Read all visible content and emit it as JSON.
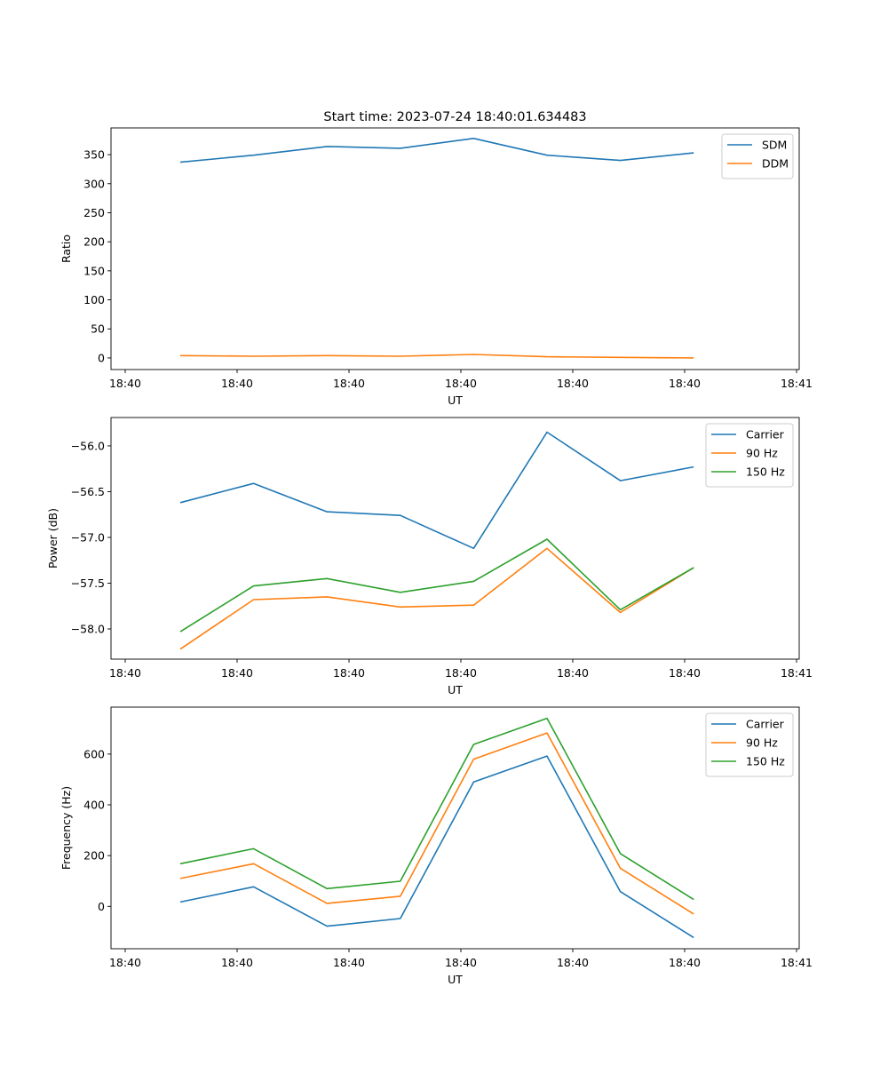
{
  "figure": {
    "title": "Start time: 2023-07-24 18:40:01.634483"
  },
  "chart_data": [
    {
      "type": "line",
      "title": "Start time: 2023-07-24 18:40:01.634483",
      "xlabel": "UT",
      "ylabel": "Ratio",
      "x_ticks": [
        "18:40",
        "18:40",
        "18:40",
        "18:40",
        "18:40",
        "18:40",
        "18:41"
      ],
      "y_ticks": [
        0,
        50,
        100,
        150,
        200,
        250,
        300,
        350
      ],
      "ylim": [
        -20,
        396
      ],
      "x_points": 8,
      "legend_position": "top-right",
      "series": [
        {
          "name": "SDM",
          "color": "#1f77b4",
          "values": [
            337,
            349,
            364,
            361,
            378,
            349,
            340,
            353
          ]
        },
        {
          "name": "DDM",
          "color": "#ff7f0e",
          "values": [
            4,
            3,
            4,
            3,
            6,
            2,
            1,
            0
          ]
        }
      ]
    },
    {
      "type": "line",
      "title": "",
      "xlabel": "UT",
      "ylabel": "Power (dB)",
      "x_ticks": [
        "18:40",
        "18:40",
        "18:40",
        "18:40",
        "18:40",
        "18:40",
        "18:41"
      ],
      "y_ticks": [
        -58.0,
        -57.5,
        -57.0,
        -56.5,
        -56.0
      ],
      "y_tick_labels": [
        "−58.0",
        "−57.5",
        "−57.0",
        "−56.5",
        "−56.0"
      ],
      "ylim": [
        -58.33,
        -55.69
      ],
      "x_points": 8,
      "legend_position": "top-right",
      "series": [
        {
          "name": "Carrier",
          "color": "#1f77b4",
          "values": [
            -56.62,
            -56.41,
            -56.72,
            -56.76,
            -57.12,
            -55.85,
            -56.38,
            -56.23
          ]
        },
        {
          "name": "90 Hz",
          "color": "#ff7f0e",
          "values": [
            -58.22,
            -57.68,
            -57.65,
            -57.76,
            -57.74,
            -57.12,
            -57.82,
            -57.33
          ]
        },
        {
          "name": "150 Hz",
          "color": "#2ca02c",
          "values": [
            -58.03,
            -57.53,
            -57.45,
            -57.6,
            -57.48,
            -57.02,
            -57.79,
            -57.33
          ]
        }
      ]
    },
    {
      "type": "line",
      "title": "",
      "xlabel": "UT",
      "ylabel": "Frequency (Hz)",
      "x_ticks": [
        "18:40",
        "18:40",
        "18:40",
        "18:40",
        "18:40",
        "18:40",
        "18:41"
      ],
      "y_ticks": [
        0,
        200,
        400,
        600
      ],
      "ylim": [
        -167,
        785
      ],
      "x_points": 8,
      "legend_position": "top-right",
      "series": [
        {
          "name": "Carrier",
          "color": "#1f77b4",
          "values": [
            17,
            77,
            -78,
            -48,
            490,
            592,
            58,
            -123
          ]
        },
        {
          "name": "90 Hz",
          "color": "#ff7f0e",
          "values": [
            110,
            168,
            12,
            40,
            580,
            683,
            150,
            -30
          ]
        },
        {
          "name": "150 Hz",
          "color": "#2ca02c",
          "values": [
            168,
            227,
            70,
            99,
            638,
            741,
            208,
            27
          ]
        }
      ]
    }
  ]
}
